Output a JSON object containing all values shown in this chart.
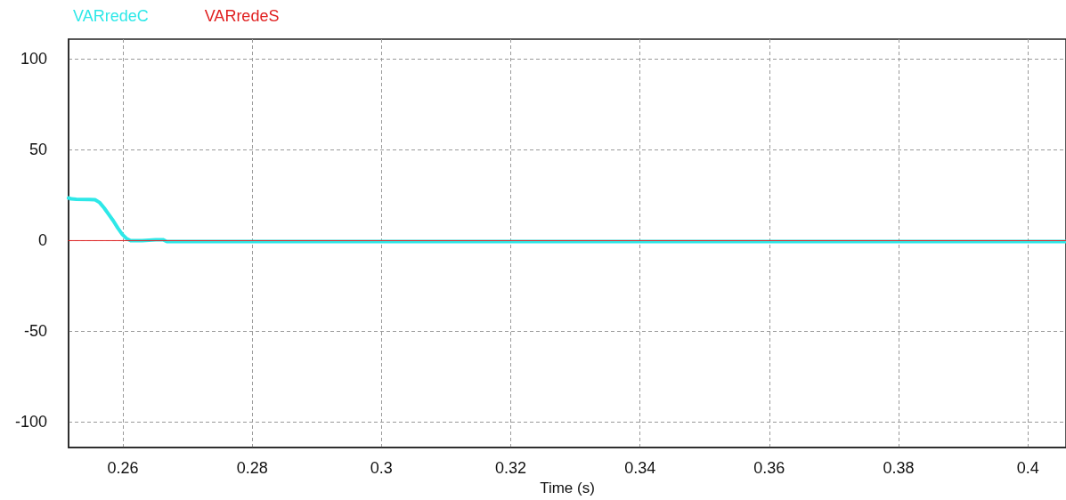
{
  "chart_data": {
    "type": "line",
    "xlabel": "Time (s)",
    "x": [
      0.2516,
      0.252,
      0.2528,
      0.2548,
      0.2557,
      0.2564,
      0.2571,
      0.2578,
      0.2585,
      0.2592,
      0.2599,
      0.2606,
      0.2612,
      0.263,
      0.2651,
      0.2662,
      0.2668,
      0.4059
    ],
    "series": [
      {
        "name": "VARredeC",
        "color": "#2ee8e8",
        "values": [
          23.5,
          23,
          22.8,
          22.7,
          22.5,
          21,
          18,
          14.5,
          11,
          7,
          3.5,
          1,
          0,
          0,
          0.5,
          0.5,
          -0.5,
          -0.5
        ]
      },
      {
        "name": "VARredeS",
        "color": "#e02020",
        "x": [
          0.2516,
          0.4059
        ],
        "values": [
          0,
          0
        ]
      }
    ],
    "xlim": [
      0.2516,
      0.4059
    ],
    "xticks": [
      0.26,
      0.28,
      0.3,
      0.32,
      0.34,
      0.36,
      0.38,
      0.4
    ],
    "ylim": [
      -114,
      111
    ],
    "yticks": [
      -100,
      -50,
      0,
      50,
      100
    ],
    "grid": true,
    "legend": "top left",
    "marker": "none"
  }
}
